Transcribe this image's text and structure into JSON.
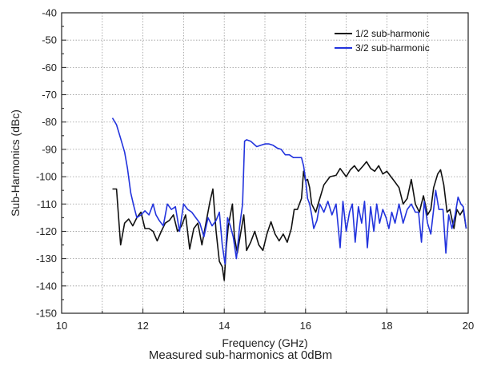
{
  "caption": "Measured sub-harmonics at 0dBm",
  "chart_data": {
    "type": "line",
    "xlabel": "Frequency (GHz)",
    "ylabel": "Sub-Harmonics (dBc)",
    "xlim": [
      10,
      20
    ],
    "ylim": [
      -150,
      -40
    ],
    "xticks": [
      10,
      12,
      14,
      16,
      18,
      20
    ],
    "yticks": [
      -150,
      -140,
      -130,
      -120,
      -110,
      -100,
      -90,
      -80,
      -70,
      -60,
      -50,
      -40
    ],
    "grid": true,
    "legend_position": "top-right",
    "series": [
      {
        "name": "1/2 sub-harmonic",
        "color": "#111111",
        "points": [
          [
            11.25,
            -104.5
          ],
          [
            11.35,
            -104.5
          ],
          [
            11.45,
            -125
          ],
          [
            11.55,
            -117
          ],
          [
            11.65,
            -115.5
          ],
          [
            11.75,
            -118
          ],
          [
            11.85,
            -115
          ],
          [
            11.95,
            -113
          ],
          [
            12.05,
            -119
          ],
          [
            12.15,
            -119
          ],
          [
            12.25,
            -120
          ],
          [
            12.35,
            -123.5
          ],
          [
            12.45,
            -120
          ],
          [
            12.55,
            -117
          ],
          [
            12.65,
            -116
          ],
          [
            12.75,
            -114
          ],
          [
            12.85,
            -120
          ],
          [
            12.95,
            -118
          ],
          [
            13.05,
            -114
          ],
          [
            13.15,
            -126.5
          ],
          [
            13.25,
            -119
          ],
          [
            13.35,
            -117
          ],
          [
            13.45,
            -125
          ],
          [
            13.55,
            -117
          ],
          [
            13.65,
            -109
          ],
          [
            13.72,
            -104.5
          ],
          [
            13.8,
            -120
          ],
          [
            13.88,
            -131
          ],
          [
            13.95,
            -133
          ],
          [
            14.0,
            -138
          ],
          [
            14.05,
            -126
          ],
          [
            14.1,
            -118
          ],
          [
            14.15,
            -114
          ],
          [
            14.2,
            -110
          ],
          [
            14.25,
            -122
          ],
          [
            14.32,
            -128
          ],
          [
            14.4,
            -121
          ],
          [
            14.48,
            -114
          ],
          [
            14.55,
            -127
          ],
          [
            14.65,
            -124
          ],
          [
            14.75,
            -120
          ],
          [
            14.85,
            -125
          ],
          [
            14.95,
            -127
          ],
          [
            15.05,
            -121
          ],
          [
            15.15,
            -116.5
          ],
          [
            15.25,
            -121
          ],
          [
            15.35,
            -123.5
          ],
          [
            15.45,
            -121
          ],
          [
            15.55,
            -124
          ],
          [
            15.65,
            -119
          ],
          [
            15.72,
            -112
          ],
          [
            15.8,
            -112
          ],
          [
            15.9,
            -108
          ],
          [
            15.95,
            -98
          ],
          [
            16.0,
            -101.5
          ],
          [
            16.05,
            -101
          ],
          [
            16.1,
            -104
          ],
          [
            16.15,
            -110
          ],
          [
            16.25,
            -113
          ],
          [
            16.35,
            -108
          ],
          [
            16.45,
            -103
          ],
          [
            16.6,
            -100
          ],
          [
            16.75,
            -99.5
          ],
          [
            16.85,
            -97
          ],
          [
            17.0,
            -100
          ],
          [
            17.1,
            -97.5
          ],
          [
            17.2,
            -96
          ],
          [
            17.3,
            -98
          ],
          [
            17.42,
            -96
          ],
          [
            17.5,
            -94.5
          ],
          [
            17.6,
            -97
          ],
          [
            17.7,
            -98
          ],
          [
            17.8,
            -96
          ],
          [
            17.9,
            -99
          ],
          [
            18.0,
            -98
          ],
          [
            18.1,
            -100
          ],
          [
            18.2,
            -102
          ],
          [
            18.3,
            -104
          ],
          [
            18.4,
            -110
          ],
          [
            18.5,
            -108
          ],
          [
            18.6,
            -101
          ],
          [
            18.7,
            -110
          ],
          [
            18.8,
            -113
          ],
          [
            18.9,
            -107
          ],
          [
            19.0,
            -114
          ],
          [
            19.08,
            -112
          ],
          [
            19.15,
            -104
          ],
          [
            19.25,
            -99
          ],
          [
            19.32,
            -97.5
          ],
          [
            19.4,
            -103
          ],
          [
            19.48,
            -113
          ],
          [
            19.55,
            -112
          ],
          [
            19.65,
            -119
          ],
          [
            19.72,
            -112
          ],
          [
            19.8,
            -114
          ],
          [
            19.88,
            -112
          ],
          [
            19.95,
            -119
          ]
        ]
      },
      {
        "name": "3/2 sub-harmonic",
        "color": "#2233dd",
        "points": [
          [
            11.25,
            -78.5
          ],
          [
            11.35,
            -81
          ],
          [
            11.45,
            -86
          ],
          [
            11.55,
            -91
          ],
          [
            11.62,
            -97
          ],
          [
            11.7,
            -106
          ],
          [
            11.78,
            -111
          ],
          [
            11.85,
            -115
          ],
          [
            11.95,
            -114
          ],
          [
            12.05,
            -112.5
          ],
          [
            12.15,
            -114
          ],
          [
            12.25,
            -110
          ],
          [
            12.32,
            -114
          ],
          [
            12.4,
            -116
          ],
          [
            12.5,
            -118
          ],
          [
            12.6,
            -110
          ],
          [
            12.7,
            -112
          ],
          [
            12.8,
            -111
          ],
          [
            12.9,
            -120
          ],
          [
            13.0,
            -110
          ],
          [
            13.1,
            -112
          ],
          [
            13.2,
            -113
          ],
          [
            13.3,
            -115
          ],
          [
            13.4,
            -117
          ],
          [
            13.5,
            -122
          ],
          [
            13.6,
            -115
          ],
          [
            13.7,
            -118
          ],
          [
            13.8,
            -116
          ],
          [
            13.88,
            -113
          ],
          [
            13.95,
            -125
          ],
          [
            14.02,
            -132
          ],
          [
            14.08,
            -115
          ],
          [
            14.15,
            -118
          ],
          [
            14.22,
            -122
          ],
          [
            14.3,
            -130
          ],
          [
            14.38,
            -118
          ],
          [
            14.45,
            -110
          ],
          [
            14.5,
            -87
          ],
          [
            14.55,
            -86.5
          ],
          [
            14.65,
            -87
          ],
          [
            14.8,
            -89
          ],
          [
            14.9,
            -88.5
          ],
          [
            15.0,
            -88
          ],
          [
            15.1,
            -88
          ],
          [
            15.2,
            -88.5
          ],
          [
            15.3,
            -89.5
          ],
          [
            15.4,
            -90
          ],
          [
            15.5,
            -92
          ],
          [
            15.6,
            -92
          ],
          [
            15.7,
            -93
          ],
          [
            15.8,
            -93
          ],
          [
            15.9,
            -93
          ],
          [
            15.95,
            -96
          ],
          [
            16.0,
            -101
          ],
          [
            16.05,
            -108
          ],
          [
            16.1,
            -110
          ],
          [
            16.15,
            -114
          ],
          [
            16.2,
            -119
          ],
          [
            16.28,
            -116
          ],
          [
            16.35,
            -110
          ],
          [
            16.45,
            -113
          ],
          [
            16.55,
            -109
          ],
          [
            16.65,
            -114
          ],
          [
            16.75,
            -110
          ],
          [
            16.85,
            -126
          ],
          [
            16.92,
            -109
          ],
          [
            17.0,
            -120
          ],
          [
            17.08,
            -113
          ],
          [
            17.15,
            -110
          ],
          [
            17.22,
            -124
          ],
          [
            17.3,
            -111
          ],
          [
            17.38,
            -117
          ],
          [
            17.45,
            -109
          ],
          [
            17.52,
            -126
          ],
          [
            17.6,
            -111
          ],
          [
            17.68,
            -120
          ],
          [
            17.75,
            -110
          ],
          [
            17.82,
            -117
          ],
          [
            17.9,
            -112
          ],
          [
            17.98,
            -115
          ],
          [
            18.05,
            -119
          ],
          [
            18.12,
            -113
          ],
          [
            18.2,
            -117
          ],
          [
            18.3,
            -110
          ],
          [
            18.4,
            -117
          ],
          [
            18.5,
            -112
          ],
          [
            18.6,
            -110
          ],
          [
            18.7,
            -113
          ],
          [
            18.78,
            -113
          ],
          [
            18.85,
            -124
          ],
          [
            18.92,
            -109
          ],
          [
            19.0,
            -117
          ],
          [
            19.08,
            -121
          ],
          [
            19.15,
            -112
          ],
          [
            19.2,
            -105
          ],
          [
            19.28,
            -112
          ],
          [
            19.38,
            -112
          ],
          [
            19.45,
            -128
          ],
          [
            19.52,
            -114
          ],
          [
            19.6,
            -119
          ],
          [
            19.68,
            -114
          ],
          [
            19.75,
            -107.5
          ],
          [
            19.82,
            -110
          ],
          [
            19.88,
            -111
          ],
          [
            19.95,
            -119
          ]
        ]
      }
    ]
  }
}
